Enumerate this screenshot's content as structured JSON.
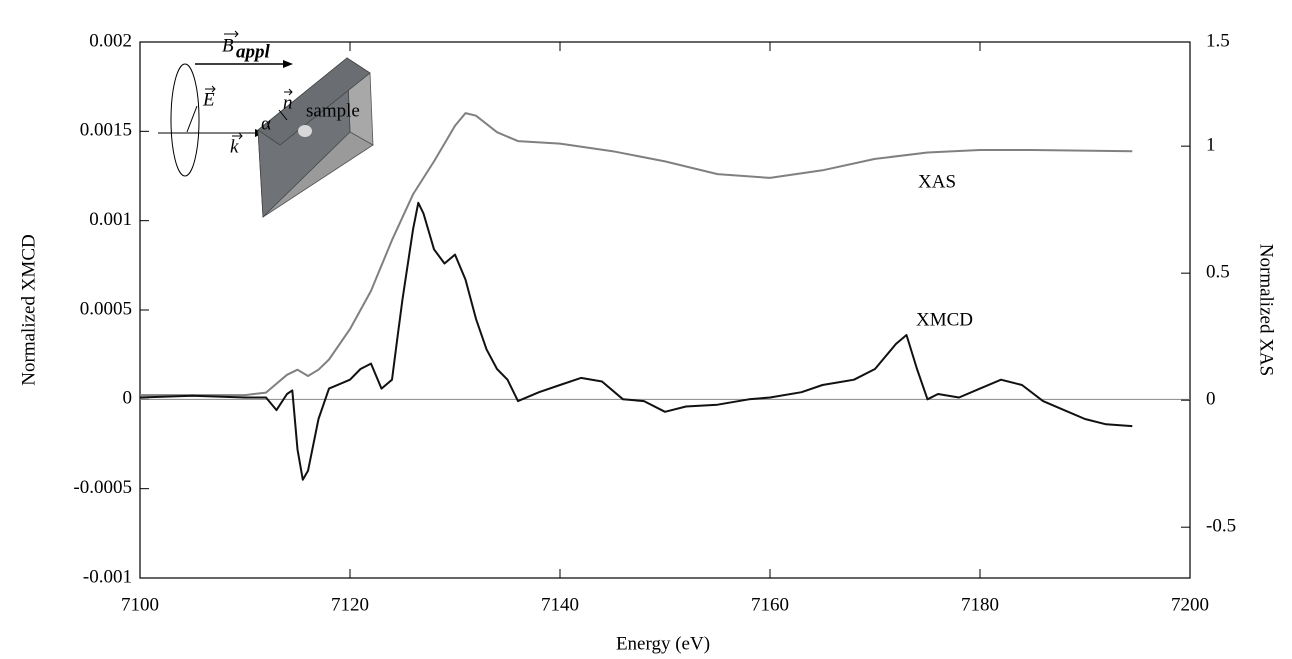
{
  "chart_data": {
    "type": "line",
    "x_label": "Energy (eV)",
    "y_label": "Normalized XMCD",
    "y2_label": "Normalized XAS",
    "xlim": [
      7100,
      7200
    ],
    "xticks": [
      7100,
      7120,
      7140,
      7160,
      7180,
      7200
    ],
    "ylim": [
      -0.001,
      0.002
    ],
    "yticks": [
      -0.001,
      -0.0005,
      0,
      0.0005,
      0.001,
      0.0015,
      0.002
    ],
    "y2lim": [
      -0.7,
      1.41
    ],
    "y2ticks": [
      -0.5,
      0,
      0.5,
      1,
      1.5
    ],
    "zero_line": true,
    "series": [
      {
        "name": "XAS",
        "color": "#808080",
        "axis": "y2",
        "x": [
          7100,
          7105,
          7110,
          7112,
          7114,
          7115,
          7116,
          7117,
          7118,
          7120,
          7122,
          7124,
          7126,
          7128,
          7130,
          7131,
          7132,
          7134,
          7136,
          7140,
          7145,
          7150,
          7155,
          7160,
          7165,
          7170,
          7175,
          7180,
          7185,
          7194.5
        ],
        "values": [
          0.02,
          0.02,
          0.02,
          0.03,
          0.1,
          0.12,
          0.095,
          0.12,
          0.16,
          0.28,
          0.43,
          0.63,
          0.81,
          0.94,
          1.08,
          1.13,
          1.12,
          1.055,
          1.02,
          1.01,
          0.98,
          0.94,
          0.89,
          0.875,
          0.905,
          0.95,
          0.975,
          0.985,
          0.985,
          0.98
        ]
      },
      {
        "name": "XMCD",
        "color": "#111111",
        "axis": "y",
        "x": [
          7100,
          7105,
          7110,
          7112,
          7113,
          7114,
          7114.5,
          7115,
          7115.5,
          7116,
          7117,
          7118,
          7120,
          7121,
          7122,
          7123,
          7124,
          7124.5,
          7125,
          7126,
          7126.5,
          7127,
          7128,
          7129,
          7130,
          7131,
          7132,
          7133,
          7134,
          7135,
          7136,
          7138,
          7140,
          7142,
          7144,
          7146,
          7148,
          7150,
          7152,
          7155,
          7158,
          7160,
          7163,
          7165,
          7168,
          7170,
          7172,
          7173,
          7174,
          7175,
          7176,
          7178,
          7180,
          7182,
          7184,
          7186,
          7188,
          7190,
          7192,
          7194.5
        ],
        "values": [
          1e-05,
          2e-05,
          1e-05,
          1e-05,
          -6e-05,
          3e-05,
          5e-05,
          -0.00028,
          -0.00045,
          -0.0004,
          -0.00011,
          6e-05,
          0.00011,
          0.00017,
          0.0002,
          6e-05,
          0.00011,
          0.00034,
          0.00056,
          0.00095,
          0.0011,
          0.00104,
          0.00084,
          0.00076,
          0.00081,
          0.00067,
          0.00045,
          0.00028,
          0.00017,
          0.00011,
          -1e-05,
          4e-05,
          8e-05,
          0.00012,
          0.0001,
          0,
          -1e-05,
          -7e-05,
          -4e-05,
          -3e-05,
          0,
          1e-05,
          4e-05,
          8e-05,
          0.00011,
          0.00017,
          0.00031,
          0.00036,
          0.00017,
          0,
          3e-05,
          1e-05,
          6e-05,
          0.00011,
          8e-05,
          -1e-05,
          -6e-05,
          -0.00011,
          -0.00014,
          -0.00015
        ]
      }
    ],
    "inset_labels": [
      "B",
      "appl",
      "E",
      "k",
      "n",
      "α",
      "sample"
    ]
  }
}
